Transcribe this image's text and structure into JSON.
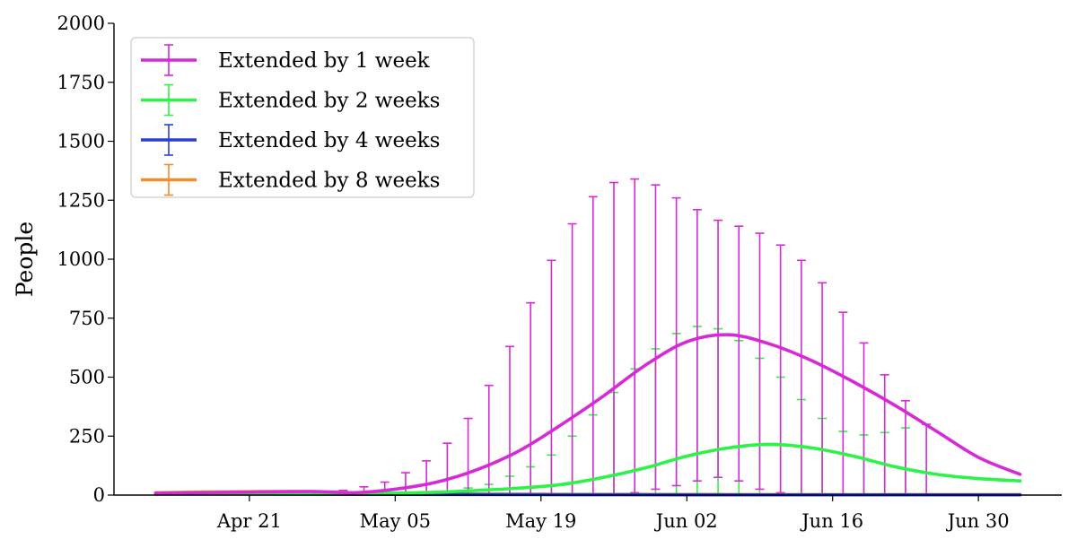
{
  "chart_data": {
    "type": "line",
    "title": "",
    "xlabel": "",
    "ylabel": "People",
    "ylim": [
      0,
      2000
    ],
    "yticks": [
      0,
      250,
      500,
      750,
      1000,
      1250,
      1500,
      1750,
      2000
    ],
    "xlim": [
      "2024-04-08",
      "2024-07-08"
    ],
    "xticks": [
      {
        "date": "2024-04-21",
        "label": "Apr 21"
      },
      {
        "date": "2024-05-05",
        "label": "May 05"
      },
      {
        "date": "2024-05-19",
        "label": "May 19"
      },
      {
        "date": "2024-06-02",
        "label": "Jun 02"
      },
      {
        "date": "2024-06-16",
        "label": "Jun 16"
      },
      {
        "date": "2024-06-30",
        "label": "Jun 30"
      }
    ],
    "grid": false,
    "legend_position": "top-left",
    "series": [
      {
        "name": "Extended by 1 week",
        "color": "#d62ad6",
        "x": [
          "2024-04-12",
          "2024-04-20",
          "2024-04-27",
          "2024-05-01",
          "2024-05-05",
          "2024-05-09",
          "2024-05-13",
          "2024-05-17",
          "2024-05-21",
          "2024-05-25",
          "2024-05-29",
          "2024-06-02",
          "2024-06-06",
          "2024-06-10",
          "2024-06-14",
          "2024-06-18",
          "2024-06-22",
          "2024-06-26",
          "2024-06-30",
          "2024-07-04"
        ],
        "y": [
          8,
          12,
          15,
          10,
          25,
          55,
          110,
          190,
          300,
          420,
          550,
          650,
          680,
          640,
          570,
          480,
          380,
          270,
          160,
          88
        ],
        "errorbars": [
          {
            "x": "2024-04-30",
            "low": 5,
            "high": 20
          },
          {
            "x": "2024-05-02",
            "low": 5,
            "high": 35
          },
          {
            "x": "2024-05-04",
            "low": 5,
            "high": 55
          },
          {
            "x": "2024-05-06",
            "low": 5,
            "high": 95
          },
          {
            "x": "2024-05-08",
            "low": 5,
            "high": 145
          },
          {
            "x": "2024-05-10",
            "low": 5,
            "high": 220
          },
          {
            "x": "2024-05-12",
            "low": 5,
            "high": 325
          },
          {
            "x": "2024-05-14",
            "low": 5,
            "high": 465
          },
          {
            "x": "2024-05-16",
            "low": 5,
            "high": 630
          },
          {
            "x": "2024-05-18",
            "low": 5,
            "high": 815
          },
          {
            "x": "2024-05-20",
            "low": 5,
            "high": 995
          },
          {
            "x": "2024-05-22",
            "low": 5,
            "high": 1150
          },
          {
            "x": "2024-05-24",
            "low": 5,
            "high": 1265
          },
          {
            "x": "2024-05-26",
            "low": 5,
            "high": 1325
          },
          {
            "x": "2024-05-28",
            "low": 10,
            "high": 1340
          },
          {
            "x": "2024-05-30",
            "low": 25,
            "high": 1315
          },
          {
            "x": "2024-06-01",
            "low": 40,
            "high": 1260
          },
          {
            "x": "2024-06-03",
            "low": 60,
            "high": 1210
          },
          {
            "x": "2024-06-05",
            "low": 75,
            "high": 1165
          },
          {
            "x": "2024-06-07",
            "low": 60,
            "high": 1140
          },
          {
            "x": "2024-06-09",
            "low": 25,
            "high": 1110
          },
          {
            "x": "2024-06-11",
            "low": 10,
            "high": 1060
          },
          {
            "x": "2024-06-13",
            "low": 5,
            "high": 995
          },
          {
            "x": "2024-06-15",
            "low": 5,
            "high": 900
          },
          {
            "x": "2024-06-17",
            "low": 5,
            "high": 775
          },
          {
            "x": "2024-06-19",
            "low": 5,
            "high": 645
          },
          {
            "x": "2024-06-21",
            "low": 5,
            "high": 510
          },
          {
            "x": "2024-06-23",
            "low": 5,
            "high": 400
          },
          {
            "x": "2024-06-25",
            "low": 5,
            "high": 300
          }
        ]
      },
      {
        "name": "Extended by 2 weeks",
        "color": "#2ef24a",
        "x": [
          "2024-04-12",
          "2024-04-27",
          "2024-05-05",
          "2024-05-09",
          "2024-05-13",
          "2024-05-17",
          "2024-05-21",
          "2024-05-25",
          "2024-05-29",
          "2024-06-02",
          "2024-06-06",
          "2024-06-10",
          "2024-06-14",
          "2024-06-18",
          "2024-06-22",
          "2024-06-26",
          "2024-06-30",
          "2024-07-04"
        ],
        "y": [
          4,
          6,
          8,
          12,
          20,
          30,
          45,
          75,
          115,
          165,
          200,
          215,
          200,
          165,
          120,
          88,
          70,
          60
        ],
        "errorbars": [
          {
            "x": "2024-05-10",
            "low": 5,
            "high": 15
          },
          {
            "x": "2024-05-12",
            "low": 5,
            "high": 30
          },
          {
            "x": "2024-05-14",
            "low": 5,
            "high": 45
          },
          {
            "x": "2024-05-16",
            "low": 5,
            "high": 80
          },
          {
            "x": "2024-05-18",
            "low": 5,
            "high": 120
          },
          {
            "x": "2024-05-20",
            "low": 5,
            "high": 170
          },
          {
            "x": "2024-05-22",
            "low": 5,
            "high": 250
          },
          {
            "x": "2024-05-24",
            "low": 5,
            "high": 340
          },
          {
            "x": "2024-05-26",
            "low": 5,
            "high": 435
          },
          {
            "x": "2024-05-28",
            "low": 5,
            "high": 535
          },
          {
            "x": "2024-05-30",
            "low": 5,
            "high": 620
          },
          {
            "x": "2024-06-01",
            "low": 5,
            "high": 685
          },
          {
            "x": "2024-06-03",
            "low": 5,
            "high": 715
          },
          {
            "x": "2024-06-05",
            "low": 5,
            "high": 705
          },
          {
            "x": "2024-06-07",
            "low": 5,
            "high": 655
          },
          {
            "x": "2024-06-09",
            "low": 5,
            "high": 580
          },
          {
            "x": "2024-06-11",
            "low": 5,
            "high": 500
          },
          {
            "x": "2024-06-13",
            "low": 5,
            "high": 405
          },
          {
            "x": "2024-06-15",
            "low": 5,
            "high": 325
          },
          {
            "x": "2024-06-17",
            "low": 5,
            "high": 270
          },
          {
            "x": "2024-06-19",
            "low": 5,
            "high": 255
          },
          {
            "x": "2024-06-21",
            "low": 5,
            "high": 265
          },
          {
            "x": "2024-06-23",
            "low": 5,
            "high": 285
          }
        ]
      },
      {
        "name": "Extended by 4 weeks",
        "color": "#2b3fd6",
        "x": [
          "2024-04-12",
          "2024-04-27",
          "2024-05-19",
          "2024-06-09",
          "2024-07-04"
        ],
        "y": [
          5,
          4,
          2,
          1,
          1
        ],
        "errorbars": []
      },
      {
        "name": "Extended by 8 weeks",
        "color": "#f28c28",
        "x": [
          "2024-04-12",
          "2024-04-17",
          "2024-04-22",
          "2024-04-27",
          "2024-05-01",
          "2024-05-05",
          "2024-05-19",
          "2024-06-09",
          "2024-07-04"
        ],
        "y": [
          10,
          13,
          15,
          15,
          10,
          5,
          3,
          2,
          2
        ],
        "errorbars": []
      }
    ]
  }
}
